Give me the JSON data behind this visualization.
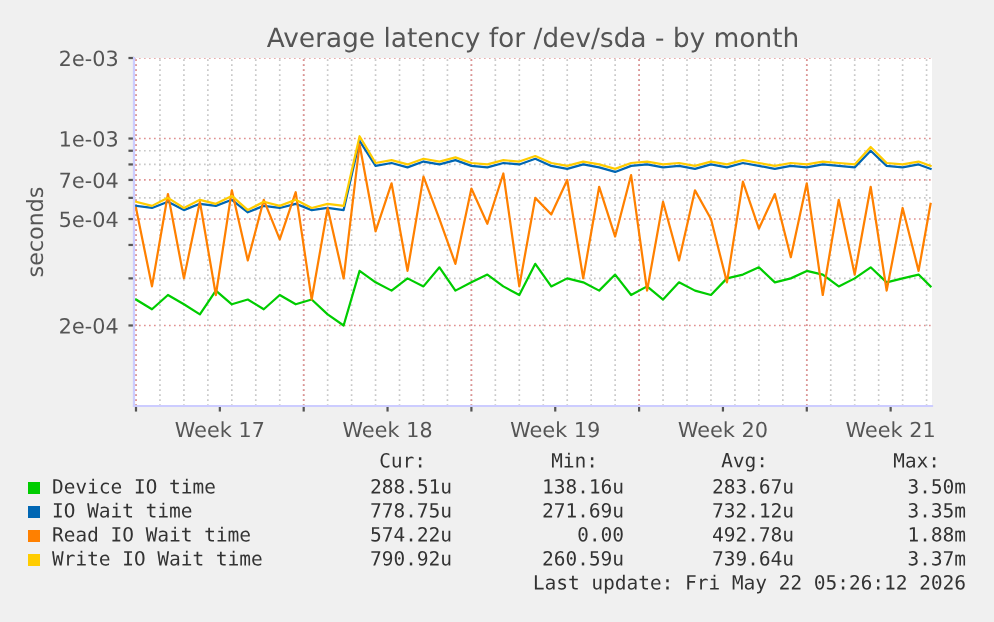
{
  "chart_data": {
    "type": "line",
    "title": "Average latency for /dev/sda - by month",
    "ylabel": "seconds",
    "x": [
      "2026-04-19T00:00",
      "2026-04-19T16:00",
      "2026-04-20T08:00",
      "2026-04-21T00:00",
      "2026-04-21T16:00",
      "2026-04-22T08:00",
      "2026-04-23T00:00",
      "2026-04-23T16:00",
      "2026-04-24T08:00",
      "2026-04-25T00:00",
      "2026-04-25T16:00",
      "2026-04-26T08:00",
      "2026-04-27T00:00",
      "2026-04-27T16:00",
      "2026-04-28T08:00",
      "2026-04-29T00:00",
      "2026-04-29T16:00",
      "2026-04-30T08:00",
      "2026-05-01T00:00",
      "2026-05-01T16:00",
      "2026-05-02T08:00",
      "2026-05-03T00:00",
      "2026-05-03T16:00",
      "2026-05-04T08:00",
      "2026-05-05T00:00",
      "2026-05-05T16:00",
      "2026-05-06T08:00",
      "2026-05-07T00:00",
      "2026-05-07T16:00",
      "2026-05-08T08:00",
      "2026-05-09T00:00",
      "2026-05-09T16:00",
      "2026-05-10T08:00",
      "2026-05-11T00:00",
      "2026-05-11T16:00",
      "2026-05-12T08:00",
      "2026-05-13T00:00",
      "2026-05-13T16:00",
      "2026-05-14T08:00",
      "2026-05-15T00:00",
      "2026-05-15T16:00",
      "2026-05-16T08:00",
      "2026-05-17T00:00",
      "2026-05-17T16:00",
      "2026-05-18T08:00",
      "2026-05-19T00:00",
      "2026-05-19T16:00",
      "2026-05-20T08:00",
      "2026-05-21T00:00",
      "2026-05-21T16:00",
      "2026-05-22T04:00"
    ],
    "series": [
      {
        "name": "Device IO time",
        "color": "#00cc00",
        "values": [
          0.00025,
          0.00023,
          0.00026,
          0.00024,
          0.00022,
          0.00027,
          0.00024,
          0.00025,
          0.00023,
          0.00026,
          0.00024,
          0.00025,
          0.00022,
          0.0002,
          0.00032,
          0.00029,
          0.00027,
          0.0003,
          0.00028,
          0.00033,
          0.00027,
          0.00029,
          0.00031,
          0.00028,
          0.00026,
          0.00034,
          0.00028,
          0.0003,
          0.00029,
          0.00027,
          0.00031,
          0.00026,
          0.00028,
          0.00025,
          0.00029,
          0.00027,
          0.00026,
          0.0003,
          0.00031,
          0.00033,
          0.00029,
          0.0003,
          0.00032,
          0.00031,
          0.00028,
          0.0003,
          0.00033,
          0.00029,
          0.0003,
          0.00031,
          0.00028
        ]
      },
      {
        "name": "IO Wait time",
        "color": "#0066b3",
        "values": [
          0.00056,
          0.00055,
          0.00058,
          0.00054,
          0.00057,
          0.00056,
          0.00059,
          0.00053,
          0.00056,
          0.00055,
          0.00057,
          0.00054,
          0.00055,
          0.00054,
          0.00098,
          0.00079,
          0.00081,
          0.00078,
          0.00082,
          0.0008,
          0.00083,
          0.00079,
          0.00078,
          0.00081,
          0.0008,
          0.00084,
          0.00079,
          0.00077,
          0.0008,
          0.00078,
          0.00075,
          0.00079,
          0.0008,
          0.00078,
          0.00079,
          0.00077,
          0.0008,
          0.00078,
          0.00081,
          0.00079,
          0.00077,
          0.00079,
          0.00078,
          0.0008,
          0.00079,
          0.00078,
          0.0009,
          0.00079,
          0.00078,
          0.0008,
          0.00077
        ]
      },
      {
        "name": "Read IO Wait time",
        "color": "#ff8000",
        "values": [
          0.00055,
          0.00028,
          0.00062,
          0.0003,
          0.00058,
          0.00026,
          0.00064,
          0.00035,
          0.00059,
          0.00042,
          0.00063,
          0.00025,
          0.00055,
          0.0003,
          0.00095,
          0.00045,
          0.00068,
          0.00032,
          0.00072,
          0.0005,
          0.00034,
          0.00065,
          0.00048,
          0.00074,
          0.00028,
          0.0006,
          0.00052,
          0.0007,
          0.0003,
          0.00066,
          0.00043,
          0.00073,
          0.00027,
          0.00058,
          0.00035,
          0.00064,
          0.0005,
          0.00029,
          0.00069,
          0.00046,
          0.00062,
          0.00036,
          0.00068,
          0.00026,
          0.00059,
          0.00031,
          0.00066,
          0.00027,
          0.00055,
          0.00032,
          0.00057
        ]
      },
      {
        "name": "Write IO Wait time",
        "color": "#ffcc00",
        "values": [
          0.00058,
          0.00056,
          0.0006,
          0.00055,
          0.00059,
          0.00057,
          0.00061,
          0.00054,
          0.00058,
          0.00056,
          0.00059,
          0.00055,
          0.00057,
          0.00056,
          0.00102,
          0.00081,
          0.00083,
          0.0008,
          0.00084,
          0.00082,
          0.00085,
          0.00081,
          0.0008,
          0.00083,
          0.00082,
          0.00086,
          0.00081,
          0.00079,
          0.00082,
          0.0008,
          0.00077,
          0.00081,
          0.00082,
          0.0008,
          0.00081,
          0.00079,
          0.00082,
          0.0008,
          0.00083,
          0.00081,
          0.00079,
          0.00081,
          0.0008,
          0.00082,
          0.00081,
          0.0008,
          0.00093,
          0.00081,
          0.0008,
          0.00082,
          0.00079
        ]
      }
    ],
    "log": "y",
    "ylim": [
      0.0001,
      0.002
    ],
    "yticks": [
      {
        "value": 0.0002,
        "label": "2e-04"
      },
      {
        "value": 0.0003,
        "label": null
      },
      {
        "value": 0.0004,
        "label": null
      },
      {
        "value": 0.0005,
        "label": "5e-04"
      },
      {
        "value": 0.0006,
        "label": null
      },
      {
        "value": 0.0007,
        "label": "7e-04"
      },
      {
        "value": 0.0008,
        "label": null
      },
      {
        "value": 0.0009,
        "label": null
      },
      {
        "value": 0.001,
        "label": "1e-03"
      },
      {
        "value": 0.002,
        "label": "2e-03"
      }
    ],
    "xlim": [
      "2026-04-18T22:00",
      "2026-05-22T05:26"
    ],
    "xticks": [
      {
        "value": "2026-04-19",
        "label": null
      },
      {
        "value": "2026-04-22T12:00",
        "label": "Week 17"
      },
      {
        "value": "2026-04-26",
        "label": null
      },
      {
        "value": "2026-04-29T12:00",
        "label": "Week 18"
      },
      {
        "value": "2026-05-03",
        "label": null
      },
      {
        "value": "2026-05-06T12:00",
        "label": "Week 19"
      },
      {
        "value": "2026-05-10",
        "label": null
      },
      {
        "value": "2026-05-13T12:00",
        "label": "Week 20"
      },
      {
        "value": "2026-05-17",
        "label": null
      },
      {
        "value": "2026-05-20T12:00",
        "label": "Week 21"
      }
    ],
    "grid": true,
    "legend": "bottom",
    "marker": "none",
    "line_style": "solid",
    "annotations": [
      "Cur:",
      "Min:",
      "Avg:",
      "Max:",
      "288.51u",
      "138.16u",
      "283.67u",
      "3.50m",
      "778.75u",
      "271.69u",
      "732.12u",
      "3.35m",
      "574.22u",
      "0.00",
      "492.78u",
      "1.88m",
      "790.92u",
      "260.59u",
      "739.64u",
      "3.37m",
      "Last update: Fri May 22 05:26:12 2026"
    ]
  }
}
